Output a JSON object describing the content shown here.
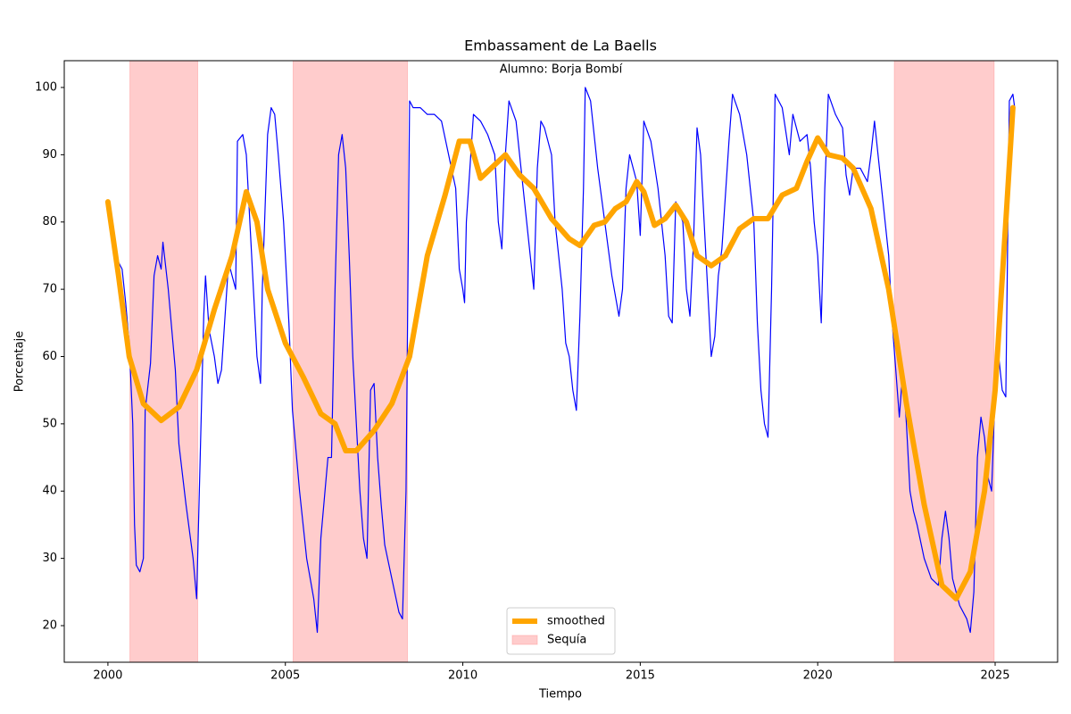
{
  "chart_data": {
    "type": "line",
    "title": "Embassament de La Baells",
    "annotation": "Alumno: Borja Bombí",
    "xlabel": "Tiempo",
    "ylabel": "Porcentaje",
    "xlim": [
      1998.77,
      2026.76
    ],
    "ylim": [
      14.56,
      103.98
    ],
    "xticks": [
      2000,
      2005,
      2010,
      2015,
      2020,
      2025
    ],
    "yticks": [
      20,
      30,
      40,
      50,
      60,
      70,
      80,
      90,
      100
    ],
    "legend_position": "lower center",
    "spans": {
      "name": "Sequía",
      "color": "#ff9999",
      "opacity": 0.5,
      "ranges": [
        [
          2000.62,
          2002.53
        ],
        [
          2005.22,
          2008.44
        ],
        [
          2022.16,
          2024.97
        ]
      ]
    },
    "series": [
      {
        "color": "#0000ff",
        "width": 1.2,
        "x": [
          2000.3,
          2000.4,
          2000.5,
          2000.6,
          2000.7,
          2000.75,
          2000.8,
          2000.9,
          2001.0,
          2001.05,
          2001.2,
          2001.3,
          2001.4,
          2001.5,
          2001.55,
          2001.7,
          2001.9,
          2002.0,
          2002.2,
          2002.4,
          2002.5,
          2002.6,
          2002.7,
          2002.75,
          2002.85,
          2003.0,
          2003.1,
          2003.2,
          2003.4,
          2003.6,
          2003.65,
          2003.8,
          2003.9,
          2004.0,
          2004.1,
          2004.2,
          2004.3,
          2004.35,
          2004.5,
          2004.6,
          2004.7,
          2004.8,
          2004.95,
          2005.1,
          2005.2,
          2005.4,
          2005.6,
          2005.8,
          2005.9,
          2006.0,
          2006.2,
          2006.3,
          2006.4,
          2006.5,
          2006.6,
          2006.7,
          2006.8,
          2006.9,
          2007.0,
          2007.1,
          2007.2,
          2007.3,
          2007.4,
          2007.5,
          2007.6,
          2007.7,
          2007.8,
          2008.0,
          2008.2,
          2008.3,
          2008.4,
          2008.5,
          2008.6,
          2008.8,
          2009.0,
          2009.2,
          2009.4,
          2009.6,
          2009.8,
          2009.9,
          2010.0,
          2010.05,
          2010.1,
          2010.2,
          2010.3,
          2010.5,
          2010.7,
          2010.9,
          2011.0,
          2011.1,
          2011.2,
          2011.3,
          2011.5,
          2011.7,
          2011.9,
          2012.0,
          2012.1,
          2012.2,
          2012.3,
          2012.5,
          2012.6,
          2012.7,
          2012.8,
          2012.9,
          2013.0,
          2013.1,
          2013.2,
          2013.3,
          2013.4,
          2013.45,
          2013.6,
          2013.8,
          2014.0,
          2014.2,
          2014.4,
          2014.5,
          2014.6,
          2014.7,
          2014.9,
          2015.0,
          2015.1,
          2015.3,
          2015.5,
          2015.7,
          2015.8,
          2015.9,
          2016.0,
          2016.2,
          2016.3,
          2016.4,
          2016.5,
          2016.6,
          2016.7,
          2016.8,
          2016.9,
          2017.0,
          2017.1,
          2017.2,
          2017.3,
          2017.5,
          2017.6,
          2017.8,
          2018.0,
          2018.2,
          2018.3,
          2018.4,
          2018.5,
          2018.6,
          2018.7,
          2018.8,
          2019.0,
          2019.2,
          2019.3,
          2019.5,
          2019.7,
          2019.8,
          2019.9,
          2020.0,
          2020.1,
          2020.2,
          2020.3,
          2020.5,
          2020.7,
          2020.8,
          2020.9,
          2021.0,
          2021.2,
          2021.4,
          2021.5,
          2021.6,
          2021.8,
          2022.0,
          2022.1,
          2022.2,
          2022.3,
          2022.4,
          2022.5,
          2022.6,
          2022.7,
          2022.8,
          2023.0,
          2023.2,
          2023.4,
          2023.5,
          2023.6,
          2023.7,
          2023.8,
          2024.0,
          2024.2,
          2024.3,
          2024.4,
          2024.5,
          2024.6,
          2024.7,
          2024.8,
          2024.9,
          2025.0,
          2025.1,
          2025.2,
          2025.3,
          2025.4,
          2025.5,
          2025.55
        ],
        "values": [
          74,
          73,
          68,
          62,
          50,
          35,
          29,
          28,
          30,
          52,
          59,
          72,
          75,
          73,
          77,
          70,
          58,
          47,
          38,
          30,
          24,
          45,
          66,
          72,
          64,
          60,
          56,
          58,
          74,
          70,
          92,
          93,
          90,
          80,
          70,
          60,
          56,
          70,
          93,
          97,
          96,
          90,
          80,
          65,
          52,
          40,
          30,
          24,
          19,
          33,
          45,
          45,
          70,
          90,
          93,
          88,
          75,
          60,
          50,
          40,
          33,
          30,
          55,
          56,
          45,
          38,
          32,
          27,
          22,
          21,
          40,
          98,
          97,
          97,
          96,
          96,
          95,
          90,
          85,
          73,
          70,
          68,
          80,
          88,
          96,
          95,
          93,
          90,
          80,
          76,
          90,
          98,
          95,
          85,
          75,
          70,
          88,
          95,
          94,
          90,
          80,
          75,
          70,
          62,
          60,
          55,
          52,
          66,
          85,
          100,
          98,
          88,
          80,
          72,
          66,
          70,
          85,
          90,
          86,
          78,
          95,
          92,
          85,
          75,
          66,
          65,
          83,
          80,
          70,
          66,
          77,
          94,
          90,
          80,
          70,
          60,
          63,
          72,
          76,
          92,
          99,
          96,
          90,
          80,
          65,
          55,
          50,
          48,
          70,
          99,
          97,
          90,
          96,
          92,
          93,
          88,
          80,
          75,
          65,
          85,
          99,
          96,
          94,
          87,
          84,
          88,
          88,
          86,
          90,
          95,
          85,
          75,
          65,
          58,
          51,
          58,
          50,
          40,
          37,
          35,
          30,
          27,
          26,
          33,
          37,
          33,
          27,
          23,
          21,
          19,
          25,
          45,
          51,
          48,
          42,
          40,
          55,
          60,
          55,
          54,
          98,
          99,
          97
        ]
      },
      {
        "name": "smoothed",
        "color": "#ffa500",
        "width": 6,
        "x": [
          2000.0,
          2000.3,
          2000.6,
          2001.0,
          2001.5,
          2002.0,
          2002.5,
          2003.0,
          2003.5,
          2003.9,
          2004.2,
          2004.5,
          2005.0,
          2005.5,
          2006.0,
          2006.4,
          2006.7,
          2007.0,
          2007.5,
          2008.0,
          2008.5,
          2009.0,
          2009.5,
          2009.9,
          2010.2,
          2010.5,
          2010.8,
          2011.2,
          2011.6,
          2012.0,
          2012.5,
          2013.0,
          2013.3,
          2013.7,
          2014.0,
          2014.3,
          2014.6,
          2014.9,
          2015.1,
          2015.4,
          2015.7,
          2016.0,
          2016.3,
          2016.6,
          2017.0,
          2017.4,
          2017.8,
          2018.2,
          2018.6,
          2019.0,
          2019.4,
          2019.7,
          2020.0,
          2020.3,
          2020.7,
          2021.0,
          2021.5,
          2022.0,
          2022.5,
          2023.0,
          2023.5,
          2023.9,
          2024.3,
          2024.7,
          2025.0,
          2025.3,
          2025.5
        ],
        "values": [
          83,
          72,
          60,
          53,
          50.5,
          52.5,
          58,
          67,
          75,
          84.5,
          80,
          70,
          62,
          57,
          51.5,
          50,
          46,
          46,
          49,
          53,
          60,
          75,
          84,
          92,
          92,
          86.5,
          88,
          90,
          87,
          85,
          80.5,
          77.5,
          76.5,
          79.5,
          80,
          82,
          83,
          86,
          84.5,
          79.5,
          80.5,
          82.5,
          80,
          75,
          73.5,
          75,
          79,
          80.5,
          80.5,
          84,
          85,
          89,
          92.5,
          90,
          89.5,
          88,
          82,
          70,
          53,
          38,
          26,
          24,
          28,
          40,
          55,
          80,
          97
        ]
      }
    ]
  }
}
